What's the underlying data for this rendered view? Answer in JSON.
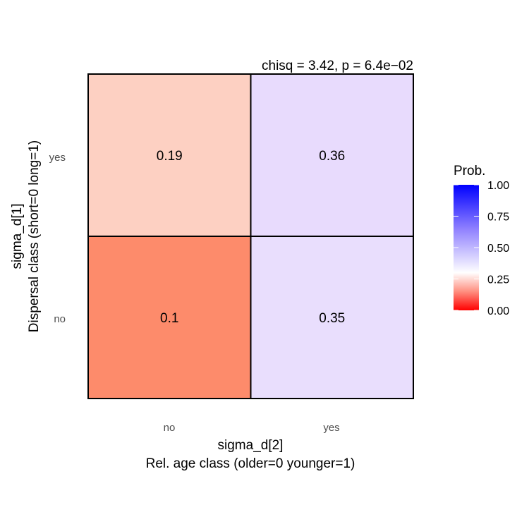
{
  "chart_data": {
    "type": "heatmap",
    "annotation": "chisq = 3.42, p = 6.4e−02",
    "x_categories": [
      "no",
      "yes"
    ],
    "y_categories": [
      "no",
      "yes"
    ],
    "xlabel": [
      "sigma_d[2]",
      "Rel. age class (older=0 younger=1)"
    ],
    "ylabel": [
      "sigma_d[1]",
      "Dispersal class (short=0 long=1)"
    ],
    "cells": [
      {
        "x": "no",
        "y": "yes",
        "value": 0.19,
        "label": "0.19",
        "color": "#fdd0c2"
      },
      {
        "x": "yes",
        "y": "yes",
        "value": 0.36,
        "label": "0.36",
        "color": "#e8dbfd"
      },
      {
        "x": "no",
        "y": "no",
        "value": 0.1,
        "label": "0.1",
        "color": "#fd8b6b"
      },
      {
        "x": "yes",
        "y": "no",
        "value": 0.35,
        "label": "0.35",
        "color": "#e9defd"
      }
    ],
    "legend": {
      "title": "Prob.",
      "placement": "right",
      "range": [
        0,
        1
      ],
      "ticks": [
        "0.00",
        "0.25",
        "0.50",
        "0.75",
        "1.00"
      ],
      "colors": {
        "low": "#ff0000",
        "mid": "#ffffff",
        "high": "#0000ff"
      },
      "midpoint": 0.3
    },
    "grid": false
  }
}
